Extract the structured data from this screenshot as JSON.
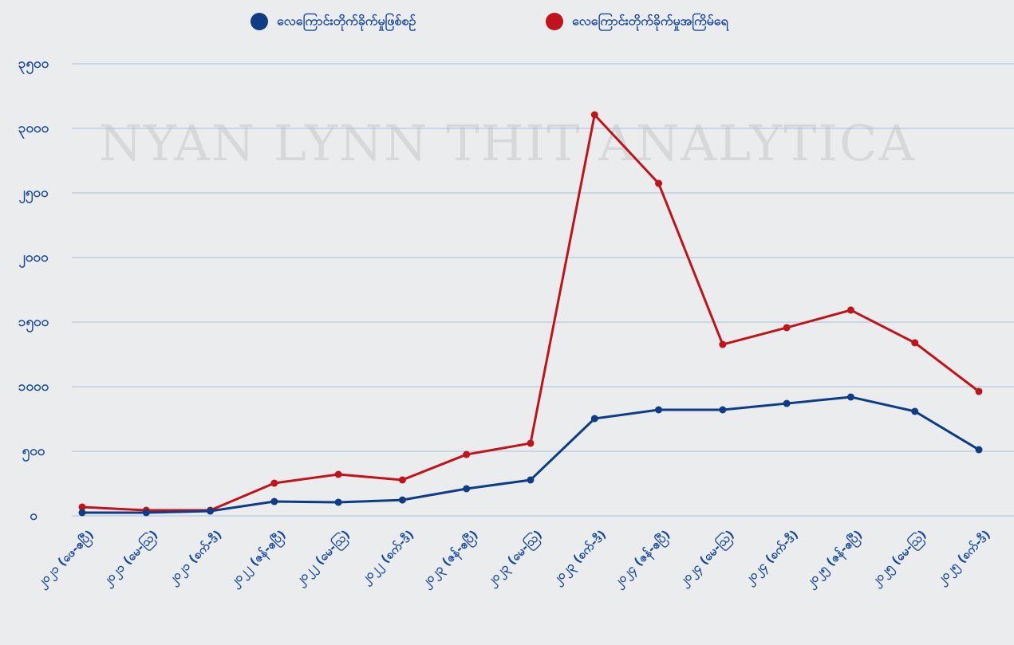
{
  "chart_data": {
    "type": "line",
    "watermark": "NYAN LYNN THIT ANALYTICA",
    "categories": [
      "၂၀၂၁ (ဖေ-ဧပြီ)",
      "၂၀၂၁ (မေ-ဩ)",
      "၂၀၂၁ (စက်-ဒီ)",
      "၂၀၂၂ (ဇန်-ဧပြီ)",
      "၂၀၂၂ (မေ-ဩ)",
      "၂၀၂၂ (စက်-ဒီ)",
      "၂၀၂၃ (ဇန်-ဧပြီ)",
      "၂၀၂၃ (မေ-ဩ)",
      "၂၀၂၃ (စက်-ဒီ)",
      "၂၀၂၄ (ဇန်-ဧပြီ)",
      "၂၀၂၄ (မေ-ဩ)",
      "၂၀၂၄ (စက်-ဒီ)",
      "၂၀၂၅ (ဇန်-ဧပြီ)",
      "၂၀၂၅ (မေ-ဩ)",
      "၂၀၂၅ (စက်-ဒီ)"
    ],
    "series": [
      {
        "name": "လေကြောင်းတိုက်ခိုက်မှုဖြစ်စဉ်",
        "color": "#0e3d86",
        "values": [
          25,
          25,
          37,
          111,
          105,
          123,
          210,
          278,
          753,
          821,
          821,
          870,
          920,
          809,
          512
        ]
      },
      {
        "name": "လေကြောင်းတိုက်ခိုက်မှုအကြိမ်ရေ",
        "color": "#c0141c",
        "values": [
          68,
          43,
          43,
          253,
          321,
          278,
          475,
          562,
          3105,
          2574,
          1327,
          1457,
          1593,
          1340,
          963
        ]
      }
    ],
    "ylim": [
      0,
      3500
    ],
    "yticks": [
      {
        "value": 0,
        "label": "၀"
      },
      {
        "value": 500,
        "label": "၅၀၀"
      },
      {
        "value": 1000,
        "label": "၁၀၀၀"
      },
      {
        "value": 1500,
        "label": "၁၅၀၀"
      },
      {
        "value": 2000,
        "label": "၂၀၀၀"
      },
      {
        "value": 2500,
        "label": "၂၅၀၀"
      },
      {
        "value": 3000,
        "label": "၃၀၀၀"
      },
      {
        "value": 3500,
        "label": "၃၅၀၀"
      }
    ],
    "grid": true,
    "legend": "top"
  }
}
